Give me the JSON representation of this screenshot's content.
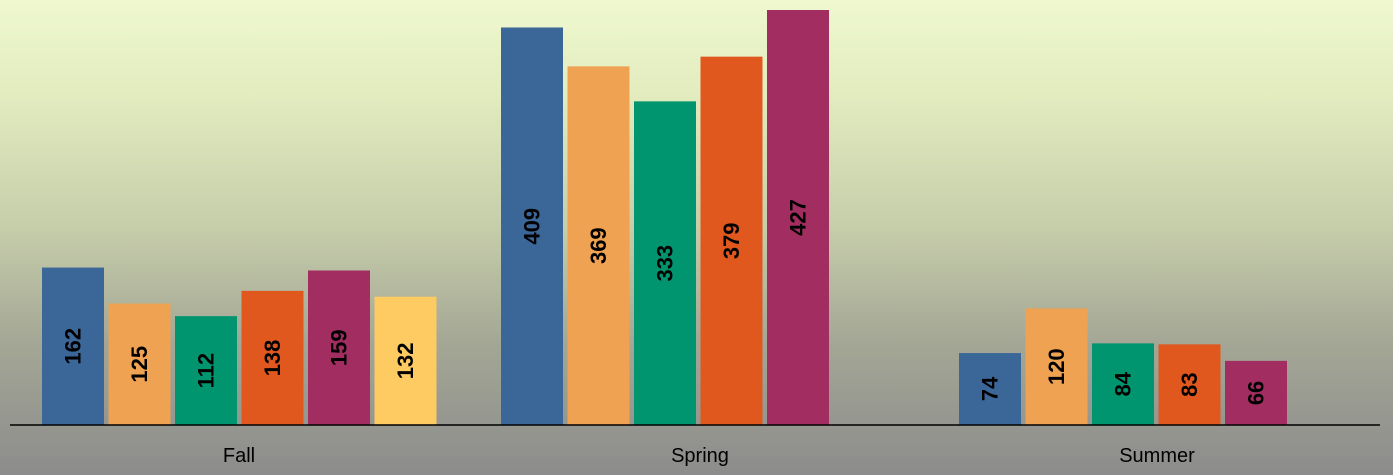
{
  "chart_data": {
    "type": "bar",
    "title": "",
    "xlabel": "",
    "ylabel": "",
    "categories": [
      "Fall",
      "Spring",
      "Summer"
    ],
    "ylim": [
      0,
      427
    ],
    "grid": false,
    "series": [
      {
        "color": "#3a6698",
        "values": [
          162,
          409,
          74
        ]
      },
      {
        "color": "#f0a253",
        "values": [
          125,
          369,
          120
        ]
      },
      {
        "color": "#01956f",
        "values": [
          112,
          333,
          84
        ]
      },
      {
        "color": "#e0581e",
        "values": [
          138,
          379,
          83
        ]
      },
      {
        "color": "#a22e61",
        "values": [
          159,
          427,
          66
        ]
      },
      {
        "color": "#fecb62",
        "values": [
          132,
          null,
          null
        ]
      }
    ]
  }
}
